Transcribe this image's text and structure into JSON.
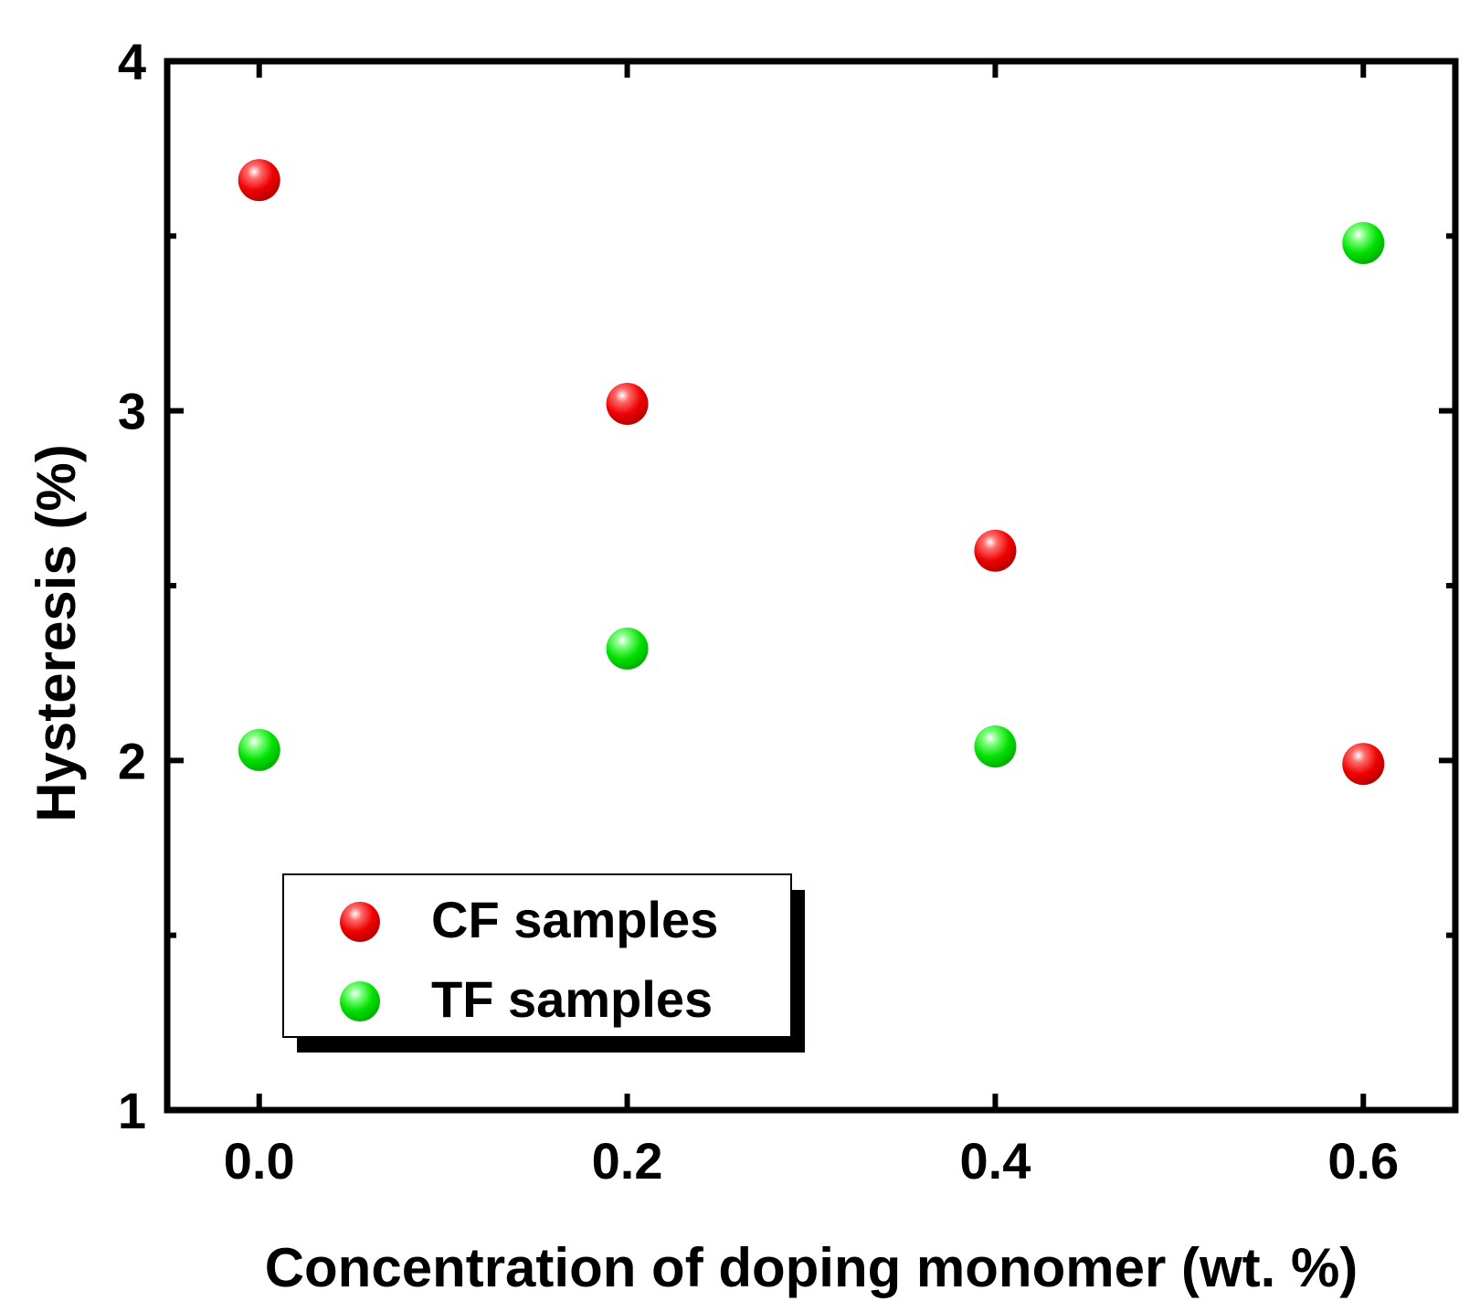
{
  "chart_data": {
    "type": "scatter",
    "title": "",
    "xlabel": "Concentration of doping monomer (wt. %)",
    "ylabel": "Hysteresis (%)",
    "xlim": [
      -0.05,
      0.65
    ],
    "ylim": [
      1,
      4
    ],
    "xticks": [
      0.0,
      0.2,
      0.4,
      0.6
    ],
    "xtick_labels": [
      "0.0",
      "0.2",
      "0.4",
      "0.6"
    ],
    "yticks": [
      1,
      2,
      3,
      4
    ],
    "ytick_labels": [
      "1",
      "2",
      "3",
      "4"
    ],
    "y_minor_ticks": [
      1.5,
      2.5,
      3.5
    ],
    "grid": false,
    "legend_position": "bottom-left",
    "series": [
      {
        "name": "CF samples",
        "color": "#ff0000",
        "x": [
          0.0,
          0.2,
          0.4,
          0.6
        ],
        "y": [
          3.66,
          3.02,
          2.6,
          1.99
        ]
      },
      {
        "name": "TF samples",
        "color": "#00ee00",
        "x": [
          0.0,
          0.2,
          0.4,
          0.6
        ],
        "y": [
          2.03,
          2.32,
          2.04,
          3.48
        ]
      }
    ]
  }
}
